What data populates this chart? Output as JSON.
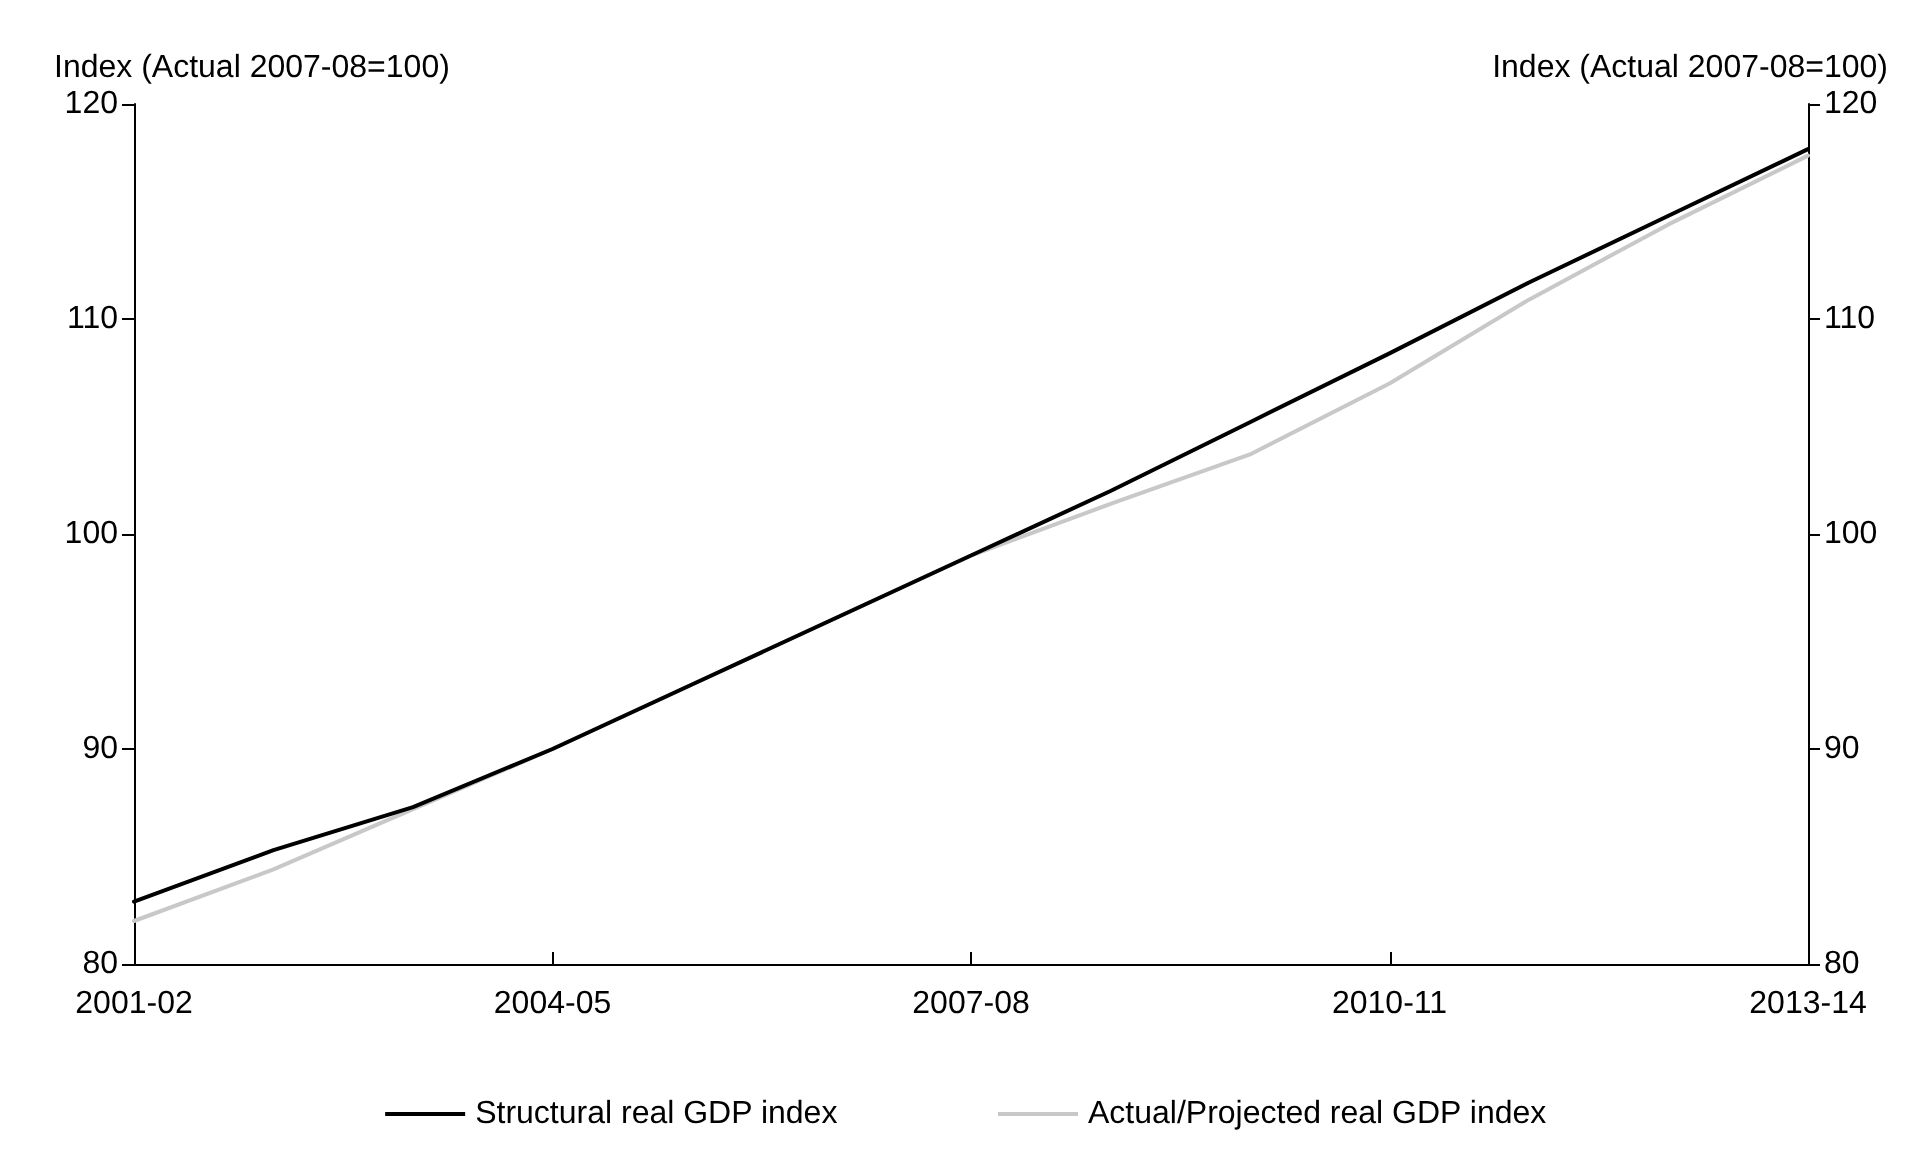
{
  "chart_data": {
    "type": "line",
    "ylabel": "Index (Actual 2007-08=100)",
    "y2label": "Index (Actual 2007-08=100)",
    "categories": [
      "2001-02",
      null,
      null,
      "2004-05",
      null,
      null,
      "2007-08",
      null,
      null,
      "2010-11",
      null,
      null,
      "2013-14"
    ],
    "series": [
      {
        "name": "Structural real GDP index",
        "color": "#000000",
        "values": [
          82.9,
          85.3,
          87.3,
          90.0,
          93.0,
          96.0,
          99.0,
          102.0,
          105.2,
          108.4,
          111.7,
          114.8,
          117.9
        ]
      },
      {
        "name": "Actual/Projected real GDP index",
        "color": "#c8c8c8",
        "values": [
          82.0,
          84.4,
          87.2,
          90.0,
          93.0,
          96.0,
          99.0,
          101.4,
          103.7,
          107.0,
          110.9,
          114.4,
          117.6
        ]
      }
    ],
    "ylim": [
      80,
      120
    ],
    "yticks": [
      80,
      90,
      100,
      110,
      120
    ],
    "y2lim": [
      80,
      120
    ],
    "y2ticks": [
      80,
      90,
      100,
      110,
      120
    ],
    "grid": false,
    "legend": "bottom",
    "marker": "none",
    "line_style": "solid"
  }
}
